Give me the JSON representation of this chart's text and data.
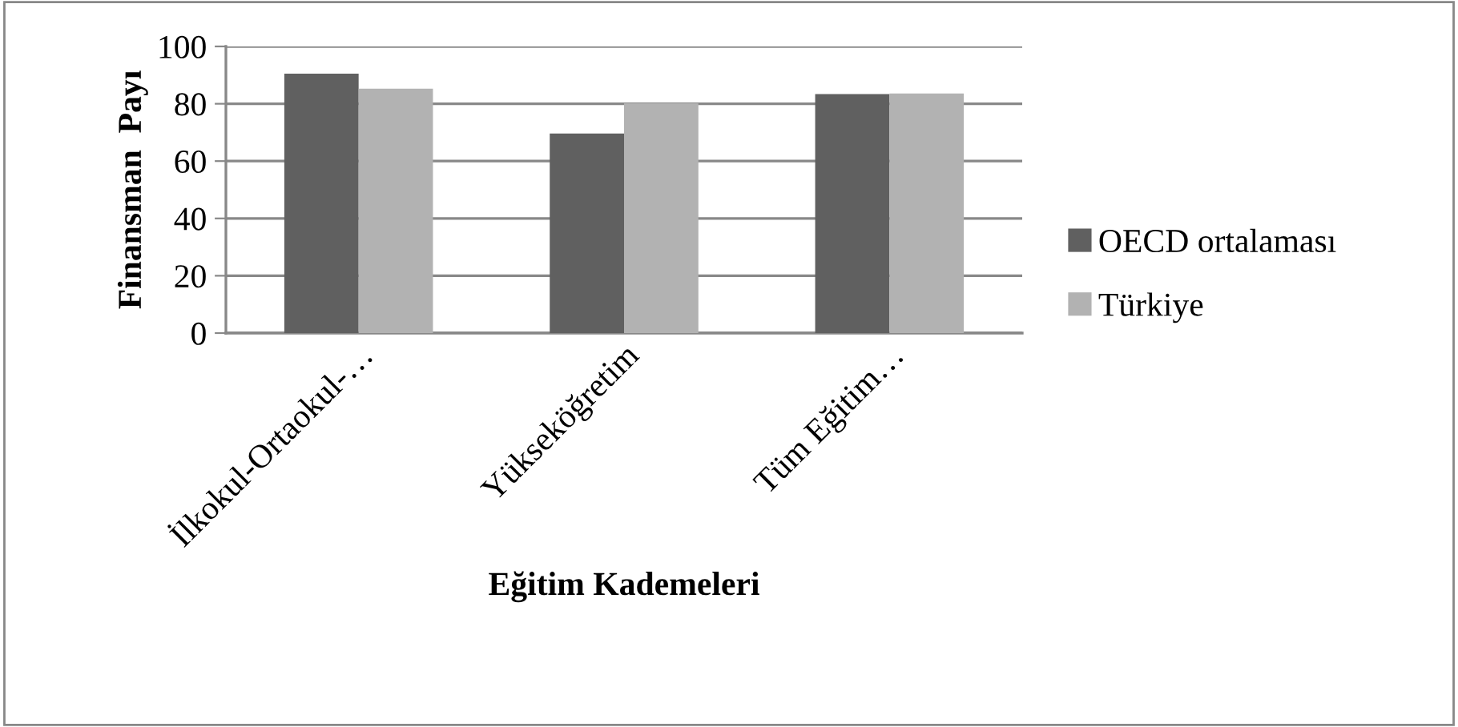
{
  "chart_data": {
    "type": "bar",
    "xlabel": "Eğitim Kademeleri",
    "ylabel": "Finansman  Payı",
    "categories": [
      "İlkokul-Ortaokul-…",
      "Yükseköğretim",
      "Tüm Eğitim…"
    ],
    "series": [
      {
        "name": "OECD ortalaması",
        "color": "#606060",
        "values": [
          90.5,
          69.6,
          83.4
        ]
      },
      {
        "name": "Türkiye",
        "color": "#b2b2b2",
        "values": [
          85.3,
          80.2,
          83.6
        ]
      }
    ],
    "ylim": [
      0,
      100
    ],
    "yticks": [
      0,
      20,
      40,
      60,
      80,
      100
    ],
    "grid": "y",
    "legend": "right"
  }
}
